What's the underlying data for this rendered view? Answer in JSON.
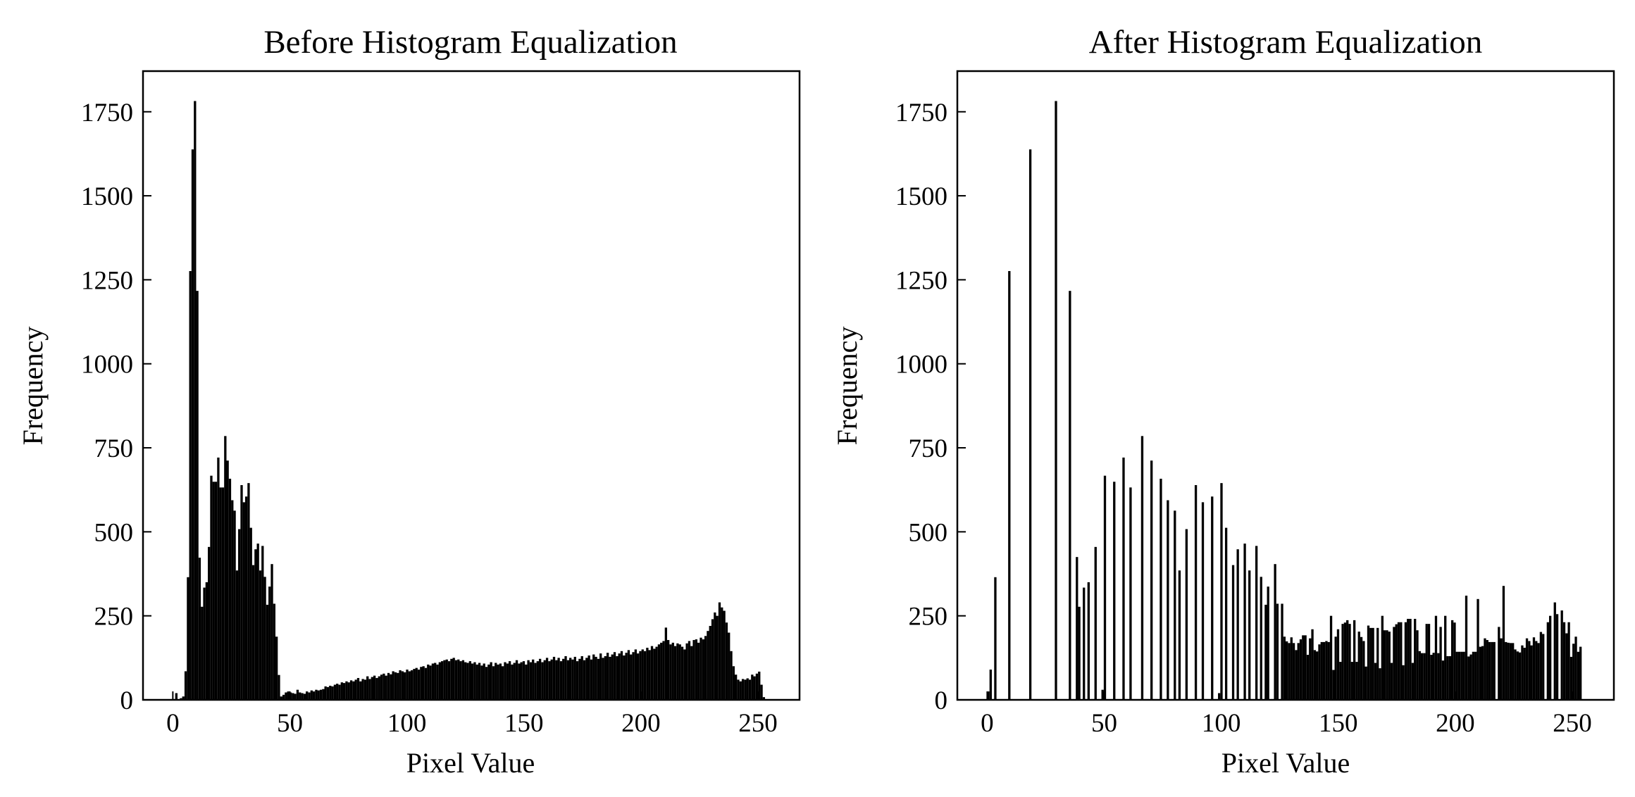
{
  "chart_data": [
    {
      "type": "bar",
      "title": "Before Histogram Equalization",
      "xlabel": "Pixel Value",
      "ylabel": "Frequency",
      "xlim": [
        -12.75,
        267.75
      ],
      "ylim": [
        0,
        1871
      ],
      "xticks": [
        0,
        50,
        100,
        150,
        200,
        250
      ],
      "yticks": [
        0,
        250,
        500,
        750,
        1000,
        1250,
        1500,
        1750
      ],
      "bins": 256,
      "color": "#000000",
      "values": [
        0,
        20,
        0,
        5,
        10,
        85,
        365,
        1276,
        1638,
        1782,
        1217,
        423,
        277,
        334,
        350,
        455,
        667,
        649,
        649,
        721,
        632,
        632,
        785,
        712,
        658,
        594,
        563,
        385,
        508,
        639,
        588,
        605,
        645,
        512,
        401,
        448,
        465,
        385,
        458,
        366,
        283,
        337,
        404,
        286,
        188,
        74,
        10,
        15,
        22,
        25,
        22,
        20,
        18,
        30,
        22,
        20,
        18,
        25,
        22,
        28,
        25,
        30,
        28,
        30,
        32,
        40,
        38,
        42,
        40,
        45,
        48,
        45,
        52,
        50,
        55,
        52,
        58,
        55,
        60,
        65,
        55,
        62,
        60,
        70,
        62,
        68,
        72,
        65,
        70,
        75,
        78,
        72,
        80,
        76,
        85,
        82,
        80,
        88,
        85,
        82,
        90,
        85,
        88,
        92,
        95,
        90,
        98,
        100,
        95,
        105,
        102,
        108,
        110,
        105,
        112,
        115,
        118,
        120,
        115,
        122,
        125,
        118,
        120,
        115,
        118,
        112,
        110,
        115,
        108,
        112,
        105,
        110,
        102,
        108,
        98,
        105,
        112,
        100,
        110,
        105,
        108,
        100,
        112,
        108,
        115,
        105,
        110,
        118,
        108,
        112,
        115,
        105,
        118,
        112,
        120,
        110,
        115,
        122,
        112,
        118,
        125,
        115,
        120,
        128,
        118,
        125,
        115,
        122,
        130,
        118,
        125,
        120,
        128,
        115,
        122,
        130,
        118,
        125,
        132,
        120,
        135,
        128,
        122,
        138,
        125,
        130,
        140,
        128,
        135,
        142,
        130,
        138,
        145,
        132,
        140,
        148,
        135,
        142,
        150,
        138,
        145,
        150,
        145,
        155,
        148,
        160,
        152,
        158,
        165,
        170,
        175,
        215,
        178,
        165,
        170,
        160,
        168,
        165,
        158,
        150,
        168,
        175,
        160,
        178,
        180,
        170,
        185,
        180,
        190,
        205,
        220,
        240,
        260,
        250,
        290,
        275,
        265,
        230,
        200,
        145,
        100,
        75,
        60,
        55,
        62,
        60,
        64,
        60,
        75,
        70,
        78,
        84,
        45,
        8,
        0,
        0
      ]
    },
    {
      "type": "bar",
      "title": "After Histogram Equalization",
      "xlabel": "Pixel Value",
      "ylabel": "Frequency",
      "xlim": [
        -12.75,
        267.75
      ],
      "ylim": [
        0,
        1871
      ],
      "xticks": [
        0,
        50,
        100,
        150,
        200,
        250
      ],
      "yticks": [
        0,
        250,
        500,
        750,
        1000,
        1250,
        1500,
        1750
      ],
      "bins": 256,
      "color": "#000000",
      "values": [
        25,
        90,
        0,
        365,
        0,
        0,
        0,
        0,
        0,
        1276,
        0,
        0,
        0,
        0,
        0,
        0,
        0,
        0,
        1638,
        0,
        0,
        0,
        0,
        0,
        0,
        0,
        0,
        0,
        0,
        1782,
        0,
        0,
        0,
        0,
        0,
        1217,
        0,
        0,
        425,
        277,
        0,
        334,
        0,
        350,
        0,
        0,
        455,
        0,
        0,
        30,
        667,
        0,
        0,
        0,
        649,
        0,
        0,
        0,
        721,
        0,
        0,
        632,
        0,
        0,
        0,
        0,
        785,
        0,
        0,
        0,
        712,
        0,
        0,
        0,
        658,
        0,
        0,
        594,
        0,
        0,
        563,
        0,
        385,
        0,
        0,
        508,
        0,
        0,
        0,
        639,
        0,
        0,
        588,
        0,
        0,
        0,
        605,
        0,
        0,
        20,
        645,
        0,
        512,
        0,
        0,
        401,
        0,
        448,
        0,
        0,
        465,
        0,
        385,
        0,
        0,
        458,
        0,
        366,
        0,
        283,
        337,
        0,
        0,
        404,
        286,
        0,
        286,
        188,
        174,
        169,
        186,
        169,
        148,
        169,
        180,
        192,
        192,
        134,
        183,
        210,
        148,
        144,
        165,
        172,
        172,
        175,
        172,
        250,
        89,
        188,
        210,
        113,
        226,
        230,
        237,
        226,
        113,
        237,
        113,
        203,
        187,
        175,
        99,
        221,
        214,
        214,
        110,
        214,
        94,
        250,
        207,
        207,
        203,
        110,
        217,
        225,
        231,
        231,
        103,
        231,
        241,
        241,
        110,
        241,
        207,
        145,
        139,
        139,
        226,
        226,
        134,
        140,
        250,
        139,
        217,
        117,
        250,
        130,
        130,
        237,
        230,
        143,
        143,
        143,
        143,
        310,
        129,
        135,
        143,
        143,
        300,
        158,
        160,
        183,
        178,
        172,
        172,
        172,
        0,
        217,
        183,
        339,
        172,
        170,
        169,
        169,
        150,
        144,
        141,
        162,
        155,
        183,
        175,
        162,
        186,
        175,
        169,
        202,
        196,
        0,
        231,
        250,
        0,
        290,
        255,
        0,
        266,
        231,
        198,
        231,
        128,
        167,
        188,
        143,
        158,
        0
      ]
    }
  ]
}
